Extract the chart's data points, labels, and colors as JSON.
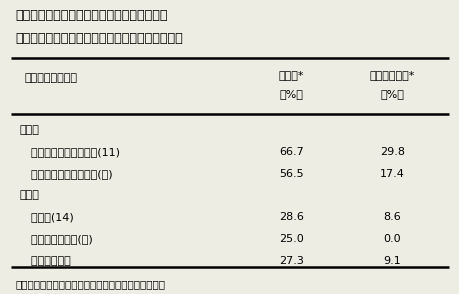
{
  "title_line1": "表１　カーネーション花蕾がく筒表皮上での",
  "title_line2": "　　　うどんこ病菌胞子の発芽率と付着器形成率",
  "header_col1": "品種（調査番数）",
  "header_col2_line1": "発芽率*",
  "header_col2_line2": "（%）",
  "header_col3_line1": "付着器形成率*",
  "header_col3_line2": "（%）",
  "group1_label": "感受性",
  "group2_label": "抵抗性",
  "rows": [
    {
      "name": "  ダークピンクバーバラ(11)",
      "v1": "66.7",
      "v2": "29.8",
      "group": 1
    },
    {
      "name": "  ライトピンクバーバラ(７)",
      "v1": "56.5",
      "v2": "17.4",
      "group": 1
    },
    {
      "name": "  パラス(14)",
      "v1": "28.6",
      "v2": "8.6",
      "group": 2
    },
    {
      "name": "  せとのはつしも(５)",
      "v1": "25.0",
      "v2": "0.0",
      "group": 2
    },
    {
      "name": "  マレア（５）",
      "v1": "27.3",
      "v2": "9.1",
      "group": 2
    }
  ],
  "footnote": "＊　発芽率、付着器形成率とも接種１週間後の調査。",
  "bg_color": "#eeede3",
  "text_color": "#000000",
  "font_size": 8.0,
  "title_font_size": 9.2
}
